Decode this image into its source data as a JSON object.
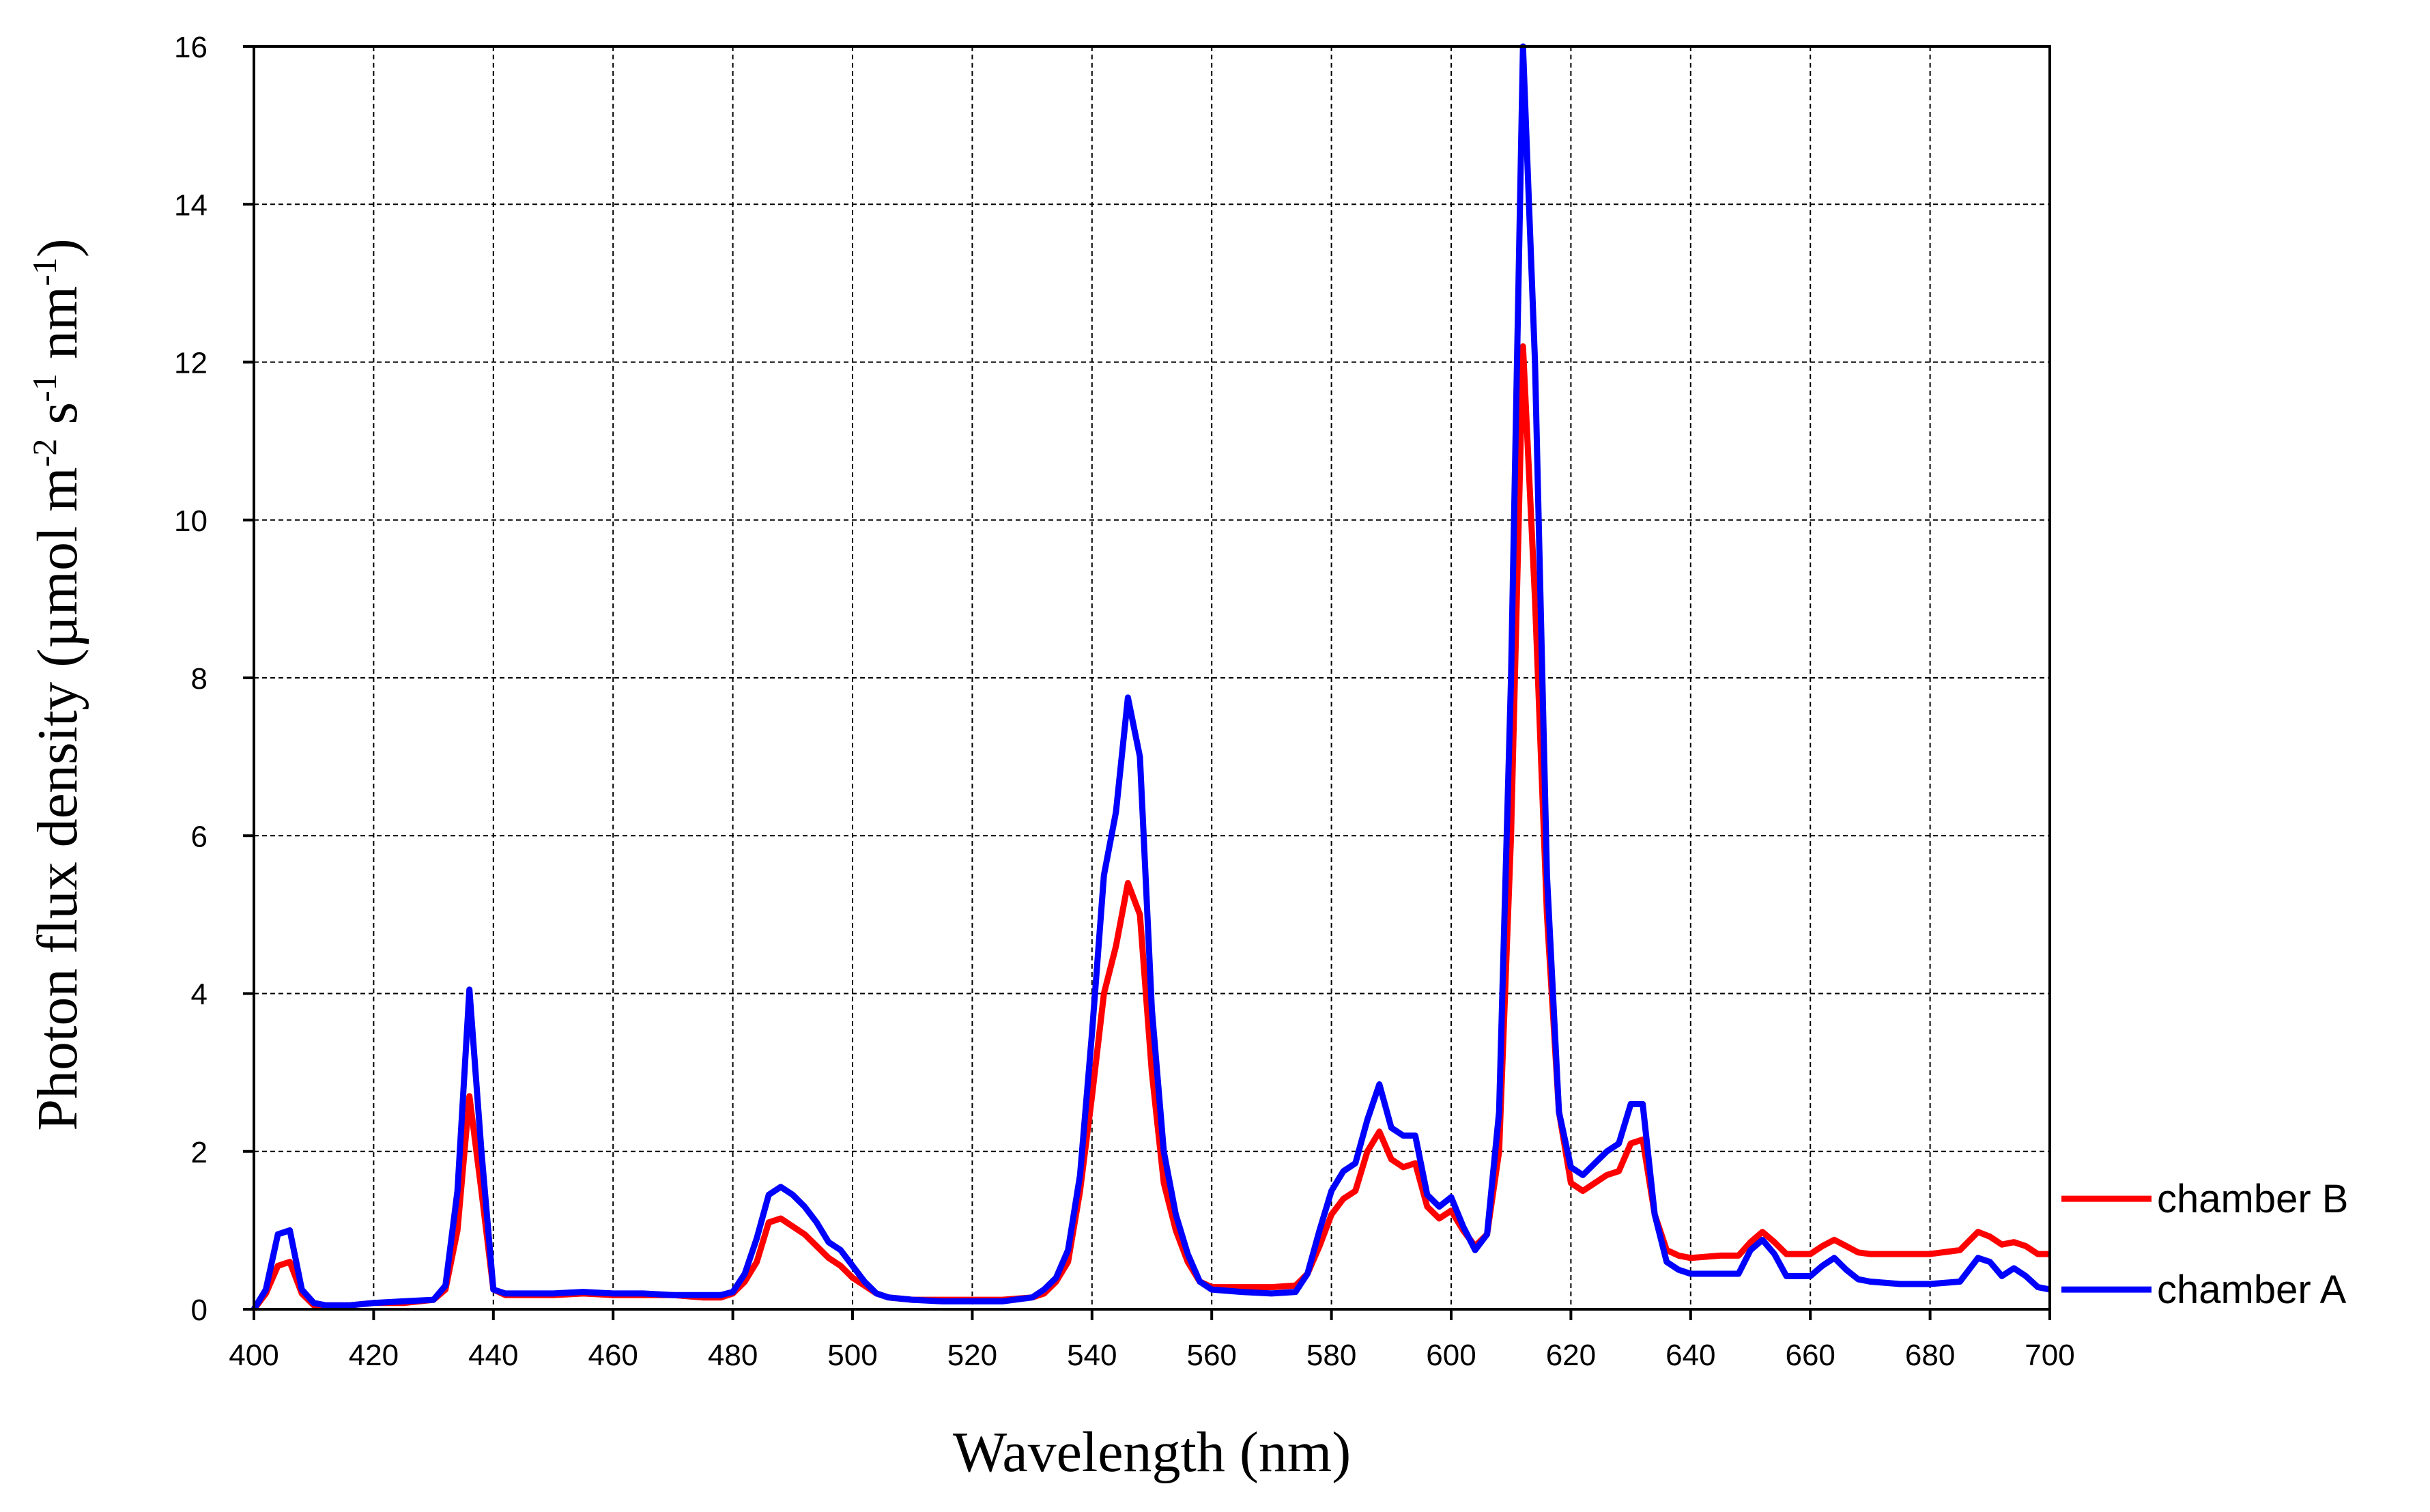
{
  "chart_data": {
    "type": "line",
    "title": "",
    "xlabel": "Wavelength (nm)",
    "ylabel": {
      "prefix": "Photon flux density (µmol m",
      "sup1": "-2",
      "mid1": " s",
      "sup2": "-1",
      "mid2": " nm",
      "sup3": "-1",
      "suffix": ")"
    },
    "xlim": [
      400,
      700
    ],
    "ylim": [
      0,
      16
    ],
    "grid": true,
    "legend_position": "bottom-right outside",
    "x_ticks": [
      "400",
      "420",
      "440",
      "460",
      "480",
      "500",
      "520",
      "540",
      "560",
      "580",
      "600",
      "620",
      "640",
      "660",
      "680",
      "700"
    ],
    "y_ticks": [
      "0",
      "2",
      "4",
      "6",
      "8",
      "10",
      "12",
      "14",
      "16"
    ],
    "colors": {
      "chamber_b": "#ff0000",
      "chamber_a": "#0000ff"
    },
    "series": [
      {
        "name": "chamber B",
        "color": "#ff0000",
        "points": [
          [
            400,
            0.0
          ],
          [
            402,
            0.2
          ],
          [
            404,
            0.55
          ],
          [
            406,
            0.6
          ],
          [
            408,
            0.2
          ],
          [
            410,
            0.05
          ],
          [
            412,
            0.05
          ],
          [
            414,
            0.05
          ],
          [
            416,
            0.05
          ],
          [
            420,
            0.08
          ],
          [
            425,
            0.08
          ],
          [
            430,
            0.12
          ],
          [
            432,
            0.25
          ],
          [
            434,
            1.0
          ],
          [
            436,
            2.7
          ],
          [
            438,
            1.5
          ],
          [
            440,
            0.25
          ],
          [
            442,
            0.18
          ],
          [
            446,
            0.18
          ],
          [
            450,
            0.18
          ],
          [
            455,
            0.2
          ],
          [
            460,
            0.18
          ],
          [
            465,
            0.18
          ],
          [
            470,
            0.18
          ],
          [
            475,
            0.15
          ],
          [
            478,
            0.15
          ],
          [
            480,
            0.2
          ],
          [
            482,
            0.35
          ],
          [
            484,
            0.6
          ],
          [
            486,
            1.1
          ],
          [
            488,
            1.15
          ],
          [
            490,
            1.05
          ],
          [
            492,
            0.95
          ],
          [
            494,
            0.8
          ],
          [
            496,
            0.65
          ],
          [
            498,
            0.55
          ],
          [
            500,
            0.4
          ],
          [
            502,
            0.3
          ],
          [
            504,
            0.2
          ],
          [
            506,
            0.15
          ],
          [
            510,
            0.12
          ],
          [
            515,
            0.12
          ],
          [
            520,
            0.12
          ],
          [
            525,
            0.12
          ],
          [
            530,
            0.15
          ],
          [
            532,
            0.2
          ],
          [
            534,
            0.35
          ],
          [
            536,
            0.6
          ],
          [
            538,
            1.5
          ],
          [
            540,
            2.7
          ],
          [
            542,
            4.0
          ],
          [
            544,
            4.6
          ],
          [
            546,
            5.4
          ],
          [
            548,
            5.0
          ],
          [
            550,
            3.0
          ],
          [
            552,
            1.6
          ],
          [
            554,
            1.0
          ],
          [
            556,
            0.6
          ],
          [
            558,
            0.35
          ],
          [
            560,
            0.28
          ],
          [
            565,
            0.28
          ],
          [
            570,
            0.28
          ],
          [
            574,
            0.3
          ],
          [
            576,
            0.45
          ],
          [
            578,
            0.8
          ],
          [
            580,
            1.2
          ],
          [
            582,
            1.4
          ],
          [
            584,
            1.5
          ],
          [
            586,
            2.0
          ],
          [
            588,
            2.25
          ],
          [
            590,
            1.9
          ],
          [
            592,
            1.8
          ],
          [
            594,
            1.85
          ],
          [
            596,
            1.3
          ],
          [
            598,
            1.15
          ],
          [
            600,
            1.25
          ],
          [
            602,
            1.0
          ],
          [
            604,
            0.8
          ],
          [
            606,
            0.95
          ],
          [
            608,
            2.0
          ],
          [
            610,
            6.0
          ],
          [
            612,
            12.2
          ],
          [
            614,
            9.0
          ],
          [
            616,
            5.0
          ],
          [
            618,
            2.5
          ],
          [
            620,
            1.6
          ],
          [
            622,
            1.5
          ],
          [
            624,
            1.6
          ],
          [
            626,
            1.7
          ],
          [
            628,
            1.75
          ],
          [
            630,
            2.1
          ],
          [
            632,
            2.15
          ],
          [
            634,
            1.2
          ],
          [
            636,
            0.75
          ],
          [
            638,
            0.68
          ],
          [
            640,
            0.65
          ],
          [
            645,
            0.68
          ],
          [
            648,
            0.68
          ],
          [
            650,
            0.85
          ],
          [
            652,
            0.98
          ],
          [
            654,
            0.85
          ],
          [
            656,
            0.7
          ],
          [
            660,
            0.7
          ],
          [
            662,
            0.8
          ],
          [
            664,
            0.88
          ],
          [
            666,
            0.8
          ],
          [
            668,
            0.72
          ],
          [
            670,
            0.7
          ],
          [
            675,
            0.7
          ],
          [
            680,
            0.7
          ],
          [
            685,
            0.75
          ],
          [
            688,
            0.98
          ],
          [
            690,
            0.92
          ],
          [
            692,
            0.82
          ],
          [
            694,
            0.85
          ],
          [
            696,
            0.8
          ],
          [
            698,
            0.7
          ],
          [
            700,
            0.7
          ]
        ]
      },
      {
        "name": "chamber A",
        "color": "#0000ff",
        "points": [
          [
            400,
            0.0
          ],
          [
            402,
            0.25
          ],
          [
            404,
            0.95
          ],
          [
            406,
            1.0
          ],
          [
            408,
            0.25
          ],
          [
            410,
            0.08
          ],
          [
            412,
            0.05
          ],
          [
            414,
            0.05
          ],
          [
            416,
            0.05
          ],
          [
            420,
            0.08
          ],
          [
            425,
            0.1
          ],
          [
            430,
            0.12
          ],
          [
            432,
            0.3
          ],
          [
            434,
            1.5
          ],
          [
            436,
            4.05
          ],
          [
            438,
            2.0
          ],
          [
            440,
            0.25
          ],
          [
            442,
            0.2
          ],
          [
            446,
            0.2
          ],
          [
            450,
            0.2
          ],
          [
            455,
            0.22
          ],
          [
            460,
            0.2
          ],
          [
            465,
            0.2
          ],
          [
            470,
            0.18
          ],
          [
            475,
            0.18
          ],
          [
            478,
            0.18
          ],
          [
            480,
            0.22
          ],
          [
            482,
            0.45
          ],
          [
            484,
            0.9
          ],
          [
            486,
            1.45
          ],
          [
            488,
            1.55
          ],
          [
            490,
            1.45
          ],
          [
            492,
            1.3
          ],
          [
            494,
            1.1
          ],
          [
            496,
            0.85
          ],
          [
            498,
            0.75
          ],
          [
            500,
            0.55
          ],
          [
            502,
            0.35
          ],
          [
            504,
            0.2
          ],
          [
            506,
            0.15
          ],
          [
            510,
            0.12
          ],
          [
            515,
            0.1
          ],
          [
            520,
            0.1
          ],
          [
            525,
            0.1
          ],
          [
            530,
            0.15
          ],
          [
            532,
            0.25
          ],
          [
            534,
            0.4
          ],
          [
            536,
            0.75
          ],
          [
            538,
            1.7
          ],
          [
            540,
            3.5
          ],
          [
            542,
            5.5
          ],
          [
            544,
            6.3
          ],
          [
            546,
            7.75
          ],
          [
            548,
            7.0
          ],
          [
            550,
            3.8
          ],
          [
            552,
            2.0
          ],
          [
            554,
            1.2
          ],
          [
            556,
            0.7
          ],
          [
            558,
            0.35
          ],
          [
            560,
            0.25
          ],
          [
            565,
            0.22
          ],
          [
            570,
            0.2
          ],
          [
            574,
            0.22
          ],
          [
            576,
            0.45
          ],
          [
            578,
            1.0
          ],
          [
            580,
            1.5
          ],
          [
            582,
            1.75
          ],
          [
            584,
            1.85
          ],
          [
            586,
            2.4
          ],
          [
            588,
            2.85
          ],
          [
            590,
            2.3
          ],
          [
            592,
            2.2
          ],
          [
            594,
            2.2
          ],
          [
            596,
            1.45
          ],
          [
            598,
            1.3
          ],
          [
            600,
            1.42
          ],
          [
            602,
            1.05
          ],
          [
            604,
            0.75
          ],
          [
            606,
            0.95
          ],
          [
            608,
            2.5
          ],
          [
            610,
            8.0
          ],
          [
            612,
            16.0
          ],
          [
            614,
            12.0
          ],
          [
            616,
            5.5
          ],
          [
            618,
            2.5
          ],
          [
            620,
            1.8
          ],
          [
            622,
            1.7
          ],
          [
            624,
            1.85
          ],
          [
            626,
            2.0
          ],
          [
            628,
            2.1
          ],
          [
            630,
            2.6
          ],
          [
            632,
            2.6
          ],
          [
            634,
            1.2
          ],
          [
            636,
            0.6
          ],
          [
            638,
            0.5
          ],
          [
            640,
            0.45
          ],
          [
            645,
            0.45
          ],
          [
            648,
            0.45
          ],
          [
            650,
            0.75
          ],
          [
            652,
            0.88
          ],
          [
            654,
            0.7
          ],
          [
            656,
            0.42
          ],
          [
            660,
            0.42
          ],
          [
            662,
            0.55
          ],
          [
            664,
            0.65
          ],
          [
            666,
            0.5
          ],
          [
            668,
            0.38
          ],
          [
            670,
            0.35
          ],
          [
            675,
            0.32
          ],
          [
            680,
            0.32
          ],
          [
            685,
            0.35
          ],
          [
            688,
            0.65
          ],
          [
            690,
            0.6
          ],
          [
            692,
            0.42
          ],
          [
            694,
            0.52
          ],
          [
            696,
            0.42
          ],
          [
            698,
            0.28
          ],
          [
            700,
            0.25
          ]
        ]
      }
    ]
  }
}
